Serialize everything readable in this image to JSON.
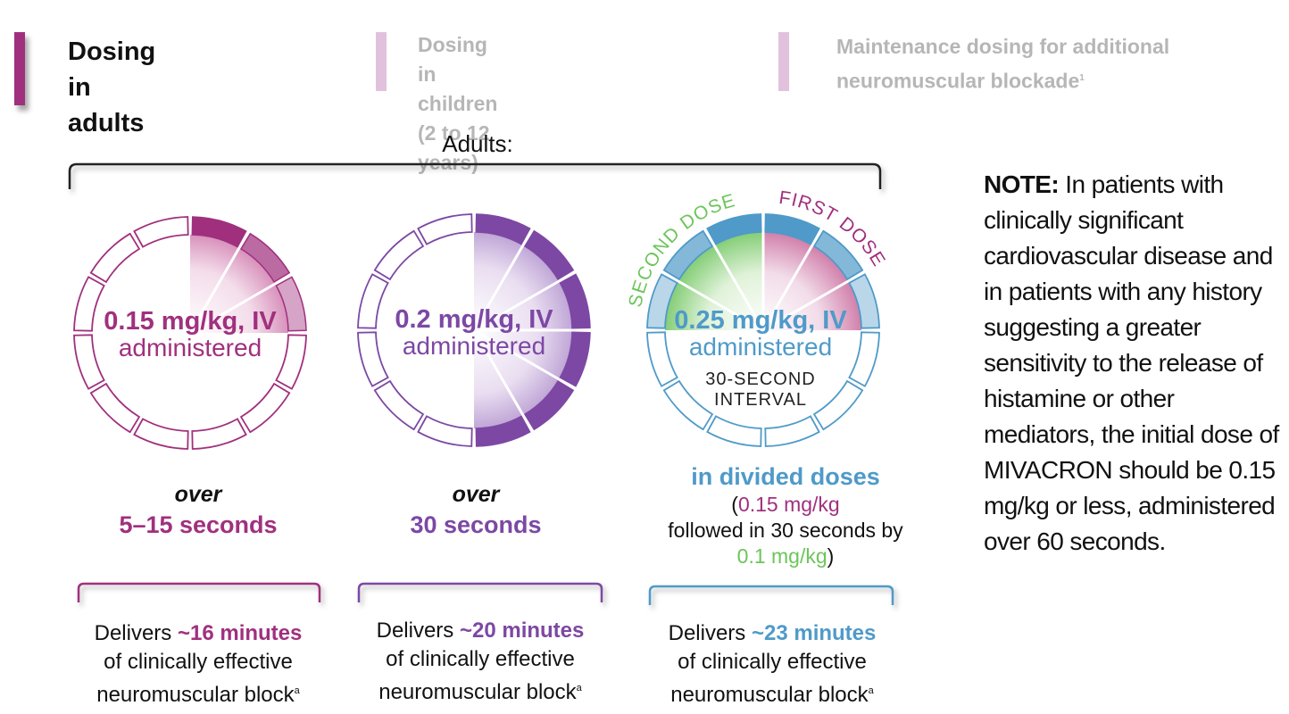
{
  "tabs": [
    {
      "line1": "Dosing",
      "line2": "in adults",
      "active": true
    },
    {
      "line1": "Dosing in children",
      "line2": "(2 to 12 years)",
      "active": false
    },
    {
      "line1": "Maintenance dosing for additional",
      "line2": "neuromuscular blockade",
      "sup": "1",
      "active": false
    }
  ],
  "section_title": "Adults:",
  "doses": [
    {
      "dose": "0.15 mg/kg, IV",
      "admin": "administered",
      "over": "over",
      "duration": "5–15 seconds",
      "filled_segments": 3,
      "total_segments": 12,
      "color": "#a0307e",
      "deliver_prefix": "Delivers",
      "deliver_time": "~16 minutes",
      "deliver_line2": "of clinically effective",
      "deliver_line3": "neuromuscular block",
      "deliver_sup": "a"
    },
    {
      "dose": "0.2 mg/kg, IV",
      "admin": "administered",
      "over": "over",
      "duration": "30 seconds",
      "filled_segments": 6,
      "total_segments": 12,
      "color": "#7c48a4",
      "deliver_prefix": "Delivers",
      "deliver_time": "~20 minutes",
      "deliver_line2": "of clinically effective",
      "deliver_line3": "neuromuscular block",
      "deliver_sup": "a"
    },
    {
      "dose": "0.25 mg/kg, IV",
      "admin": "administered",
      "interval_line1": "30-SECOND",
      "interval_line2": "INTERVAL",
      "arc_first": "FIRST DOSE",
      "arc_second": "SECOND DOSE",
      "first_segments": 3,
      "second_segments": 3,
      "total_segments": 12,
      "color": "#4f9ac9",
      "first_color": "#a0307e",
      "second_color": "#6cc55a",
      "divided_heading": "in divided doses",
      "divided_line1": "0.15 mg/kg",
      "divided_line2": "followed in 30 seconds by",
      "divided_line3": "0.1 mg/kg",
      "deliver_prefix": "Delivers",
      "deliver_time": "~23 minutes",
      "deliver_line2": "of clinically effective",
      "deliver_line3": "neuromuscular block",
      "deliver_sup": "a"
    }
  ],
  "note": {
    "label": "NOTE:",
    "text": "In patients with clinically significant cardiovascular disease and in patients with any history suggesting a greater sensitivity to the release of histamine or other mediators, the initial dose of MIVACRON should be 0.15 mg/kg or less, administered over 60 seconds."
  }
}
